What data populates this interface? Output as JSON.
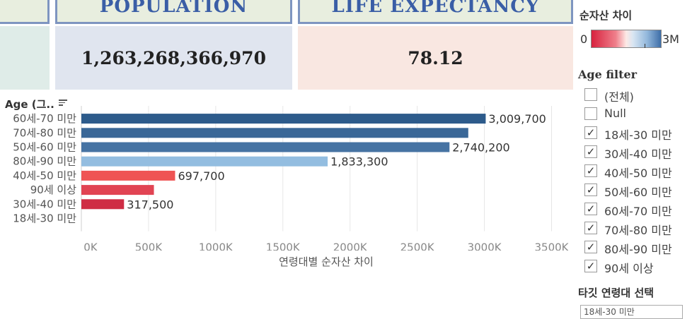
{
  "kpi": {
    "population_title": "POPULATION",
    "population_value": "1,263,268,366,970",
    "life_title": "LIFE EXPECTANCY",
    "life_value": "78.12"
  },
  "chart": {
    "title": "Age (그..",
    "xlabel": "연령대별 순자산 차이"
  },
  "chart_data": {
    "type": "bar",
    "orientation": "horizontal",
    "categories": [
      "60세-70 미만",
      "70세-80 미만",
      "50세-60 미만",
      "80세-90 미만",
      "40세-50 미만",
      "90세 이상",
      "30세-40 미만",
      "18세-30 미만"
    ],
    "values": [
      3009700,
      2880000,
      2740200,
      1833300,
      697700,
      540000,
      317500,
      0
    ],
    "value_labels": [
      "3,009,700",
      "",
      "2,740,200",
      "1,833,300",
      "697,700",
      "",
      "317,500",
      ""
    ],
    "colors": [
      "#2d5b8b",
      "#3a6797",
      "#4673a3",
      "#93bde0",
      "#ef5454",
      "#e14453",
      "#cf2d44",
      "#cf2d44"
    ],
    "x_ticks": [
      0,
      500000,
      1000000,
      1500000,
      2000000,
      2500000,
      3000000,
      3500000
    ],
    "x_tick_labels": [
      "0K",
      "500K",
      "1000K",
      "1500K",
      "2000K",
      "2500K",
      "3000K",
      "3500K"
    ],
    "xlim": [
      0,
      3650000
    ],
    "grid": true,
    "xlabel": "연령대별 순자산 차이",
    "title": "Age (그.."
  },
  "legend": {
    "title": "순자산 차이",
    "min": "0",
    "max": "3M",
    "colors": [
      "#d7223e",
      "#fde9e5",
      "#3e6ea8"
    ]
  },
  "filter": {
    "title": "Age filter",
    "items": [
      {
        "label": "(전체)",
        "mark": ""
      },
      {
        "label": "Null",
        "mark": ""
      },
      {
        "label": "18세-30 미만",
        "mark": "✓"
      },
      {
        "label": "30세-40 미만",
        "mark": "✓"
      },
      {
        "label": "40세-50 미만",
        "mark": "✓"
      },
      {
        "label": "50세-60 미만",
        "mark": "✓"
      },
      {
        "label": "60세-70 미만",
        "mark": "✓"
      },
      {
        "label": "70세-80 미만",
        "mark": "✓"
      },
      {
        "label": "80세-90 미만",
        "mark": "✓"
      },
      {
        "label": "90세 이상",
        "mark": "✓"
      }
    ]
  },
  "target": {
    "title": "타깃 연령대 선택",
    "value": "18세-30 미만"
  }
}
